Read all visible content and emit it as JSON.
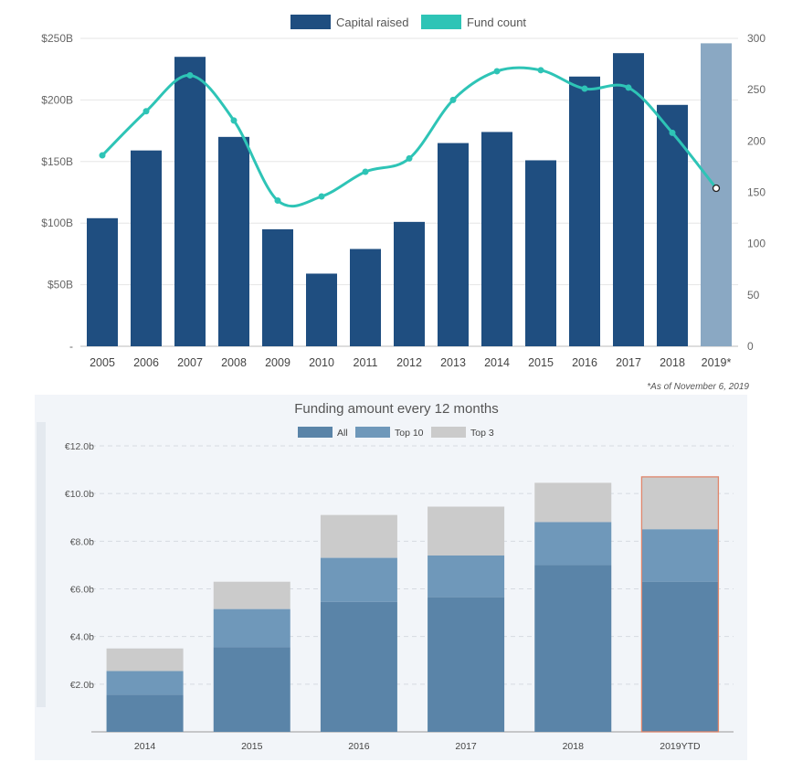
{
  "chart_data": [
    {
      "type": "bar+line",
      "title": "",
      "legend": [
        {
          "name": "Capital raised",
          "color": "#1f4e80"
        },
        {
          "name": "Fund count",
          "color": "#2ec4b6"
        }
      ],
      "legend_position": "top-center",
      "categories": [
        "2005",
        "2006",
        "2007",
        "2008",
        "2009",
        "2010",
        "2011",
        "2012",
        "2013",
        "2014",
        "2015",
        "2016",
        "2017",
        "2018",
        "2019*"
      ],
      "y_left": {
        "ticks": [
          "-",
          "$50B",
          "$100B",
          "$150B",
          "$200B",
          "$250B"
        ],
        "ylim": [
          0,
          250
        ]
      },
      "y_right": {
        "ticks": [
          "0",
          "50",
          "100",
          "150",
          "200",
          "250",
          "300"
        ],
        "ylim": [
          0,
          300
        ]
      },
      "series": [
        {
          "name": "Capital raised",
          "axis": "left",
          "values": [
            104,
            159,
            235,
            170,
            95,
            59,
            79,
            101,
            165,
            174,
            151,
            219,
            238,
            196,
            246
          ],
          "color": "#1f4e80",
          "highlight_last_color": "#8aa8c3"
        },
        {
          "name": "Fund count",
          "axis": "right",
          "values": [
            186,
            229,
            264,
            220,
            142,
            146,
            170,
            183,
            240,
            268,
            269,
            251,
            252,
            208,
            154
          ],
          "color": "#2ec4b6"
        }
      ],
      "grid": true,
      "footnote": "*As of November 6, 2019"
    },
    {
      "type": "bar",
      "title": "Funding amount every 12 months",
      "legend": [
        {
          "name": "All",
          "color": "#5a84a8"
        },
        {
          "name": "Top 10",
          "color": "#6f98ba"
        },
        {
          "name": "Top 3",
          "color": "#cbcbcb"
        }
      ],
      "legend_position": "top-center",
      "categories": [
        "2014",
        "2015",
        "2016",
        "2017",
        "2018",
        "2019YTD"
      ],
      "y_ticks": [
        "€2.0b",
        "€4.0b",
        "€6.0b",
        "€8.0b",
        "€10.0b",
        "€12.0b"
      ],
      "ylim": [
        0,
        12
      ],
      "series": [
        {
          "name": "All",
          "values": [
            1.55,
            3.55,
            5.45,
            5.65,
            7.0,
            6.3
          ]
        },
        {
          "name": "Top 10",
          "values": [
            2.55,
            5.15,
            7.3,
            7.4,
            8.8,
            8.5
          ]
        },
        {
          "name": "Top 3",
          "values": [
            3.5,
            6.3,
            9.1,
            9.45,
            10.45,
            10.7
          ]
        }
      ],
      "grid": true,
      "highlight_outline": {
        "category": "2019YTD",
        "color": "#e0866b"
      }
    }
  ]
}
